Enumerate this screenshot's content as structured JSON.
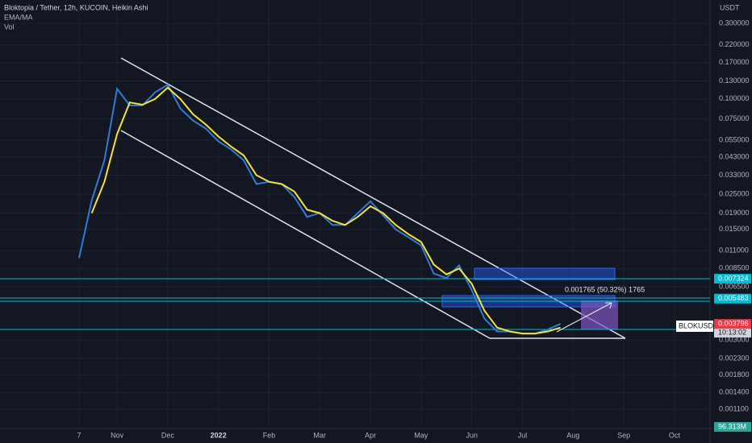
{
  "chart_data": {
    "type": "line",
    "title": "Bloktopia / Tether, 12h, KUCOIN, Heikin Ashi",
    "indicators": [
      "EMA/MA",
      "Vol"
    ],
    "y_unit": "USDT",
    "log_scale": true,
    "grid": true,
    "categories": [
      "7",
      null,
      null,
      "Nov",
      null,
      null,
      null,
      "Dec",
      null,
      null,
      null,
      "2022",
      null,
      null,
      null,
      "Feb",
      null,
      null,
      null,
      "Mar",
      null,
      null,
      null,
      "Apr",
      null,
      null,
      null,
      "May",
      null,
      null,
      null,
      "Jun",
      null,
      null,
      null,
      "Jul",
      null,
      null,
      null,
      "Aug",
      null,
      null,
      null,
      "Sep",
      null,
      null,
      null,
      "Oct"
    ],
    "series": [
      {
        "color": "#2f7bd8",
        "values": [
          0.0099,
          0.0229,
          0.041,
          0.116,
          0.091,
          0.091,
          0.11,
          0.123,
          0.087,
          0.073,
          0.065,
          0.054,
          0.048,
          0.041,
          0.029,
          0.03,
          0.029,
          0.024,
          0.018,
          0.019,
          0.016,
          0.016,
          0.019,
          0.0226,
          0.0184,
          0.015,
          0.0134,
          0.0119,
          0.0079,
          0.0074,
          0.0089,
          0.0062,
          0.0041,
          0.0034,
          0.0034,
          0.0033,
          0.0033,
          0.0035,
          0.0038,
          null,
          null,
          null,
          null,
          null,
          null,
          null,
          null,
          null
        ]
      },
      {
        "color": "#f5e13c",
        "values": [
          null,
          0.019,
          0.03,
          0.06,
          0.095,
          0.092,
          0.1,
          0.118,
          0.1,
          0.08,
          0.069,
          0.058,
          0.05,
          0.044,
          0.033,
          0.03,
          0.029,
          0.026,
          0.02,
          0.019,
          0.017,
          0.016,
          0.018,
          0.021,
          0.019,
          0.016,
          0.014,
          0.0125,
          0.009,
          0.0078,
          0.0085,
          0.0068,
          0.0046,
          0.0036,
          0.0034,
          0.0033,
          0.0033,
          0.0034,
          0.0036,
          null,
          null,
          null,
          null,
          null,
          null,
          null,
          null,
          null
        ]
      }
    ],
    "ylim": [
      0.000849,
      0.4217
    ],
    "yticks": [
      {
        "value": 0.3,
        "label": "0.300000"
      },
      {
        "value": 0.22,
        "label": "0.220000"
      },
      {
        "value": 0.17,
        "label": "0.170000"
      },
      {
        "value": 0.13,
        "label": "0.130000"
      },
      {
        "value": 0.1,
        "label": "0.100000"
      },
      {
        "value": 0.075,
        "label": "0.075000"
      },
      {
        "value": 0.055,
        "label": "0.055000"
      },
      {
        "value": 0.043,
        "label": "0.043000"
      },
      {
        "value": 0.033,
        "label": "0.033000"
      },
      {
        "value": 0.025,
        "label": "0.025000"
      },
      {
        "value": 0.019,
        "label": "0.019000"
      },
      {
        "value": 0.015,
        "label": "0.015000"
      },
      {
        "value": 0.011,
        "label": "0.011000"
      },
      {
        "value": 0.0085,
        "label": "0.008500"
      },
      {
        "value": 0.0065,
        "label": "0.006500"
      },
      {
        "value": 0.003,
        "label": "0.003000"
      },
      {
        "value": 0.0023,
        "label": "0.002300"
      },
      {
        "value": 0.0018,
        "label": "0.001800"
      },
      {
        "value": 0.0014,
        "label": "0.001400"
      },
      {
        "value": 0.0011,
        "label": "0.001100"
      }
    ],
    "price_labels": [
      {
        "value": 0.007324,
        "label": "0.007324",
        "color": "#00bcd4"
      },
      {
        "value": 0.005483,
        "label": "0.005483",
        "color": "#00bcd4"
      },
      {
        "value": 0.003796,
        "label": "0.003796",
        "color": "#f23645"
      }
    ],
    "countdown": "10:13:02",
    "symbol": "BLOKUSDT",
    "volume_label": "96.313M",
    "annotation": "0.001765 (50.32%) 1765"
  }
}
